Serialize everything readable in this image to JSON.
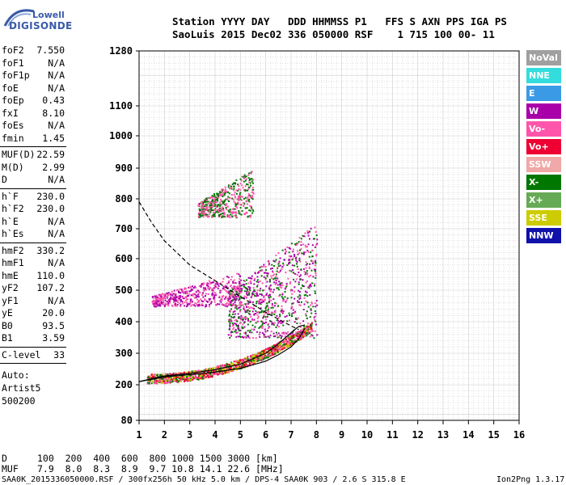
{
  "logo": {
    "line1": "Lowell",
    "line2": "DIGISONDE"
  },
  "header": {
    "row1": "Station YYYY DAY   DDD HHMMSS P1   FFS S AXN PPS IGA PS",
    "row2": "SaoLuis 2015 Dec02 336 050000 RSF    1 715 100 00- 11"
  },
  "params_groups": [
    [
      {
        "name": "foF2",
        "value": "7.550"
      },
      {
        "name": "foF1",
        "value": "N/A"
      },
      {
        "name": "foF1p",
        "value": "N/A"
      },
      {
        "name": "foE",
        "value": "N/A"
      },
      {
        "name": "foEp",
        "value": "0.43"
      },
      {
        "name": "fxI",
        "value": "8.10"
      },
      {
        "name": "foEs",
        "value": "N/A"
      },
      {
        "name": "fmin",
        "value": "1.45"
      }
    ],
    [
      {
        "name": "MUF(D)",
        "value": "22.59"
      },
      {
        "name": "M(D)",
        "value": "2.99"
      },
      {
        "name": "D",
        "value": "N/A"
      }
    ],
    [
      {
        "name": "h`F",
        "value": "230.0"
      },
      {
        "name": "h`F2",
        "value": "230.0"
      },
      {
        "name": "h`E",
        "value": "N/A"
      },
      {
        "name": "h`Es",
        "value": "N/A"
      }
    ],
    [
      {
        "name": "hmF2",
        "value": "330.2"
      },
      {
        "name": "hmF1",
        "value": "N/A"
      },
      {
        "name": "hmE",
        "value": "110.0"
      },
      {
        "name": "yF2",
        "value": "107.2"
      },
      {
        "name": "yF1",
        "value": "N/A"
      },
      {
        "name": "yE",
        "value": "20.0"
      },
      {
        "name": "B0",
        "value": "93.5"
      },
      {
        "name": "B1",
        "value": "3.59"
      }
    ],
    [
      {
        "name": "C-level",
        "value": "33"
      }
    ]
  ],
  "auto_notes": [
    "Auto:",
    "Artist5",
    "500200"
  ],
  "legend": [
    {
      "label": "NoVal",
      "color": "#a0a0a0"
    },
    {
      "label": "NNE",
      "color": "#33dddd"
    },
    {
      "label": "E",
      "color": "#3a9ae6"
    },
    {
      "label": "W",
      "color": "#aa00aa"
    },
    {
      "label": "Vo-",
      "color": "#ff55aa"
    },
    {
      "label": "Vo+",
      "color": "#ee0033"
    },
    {
      "label": "SSW",
      "color": "#f0a8a8"
    },
    {
      "label": "X-",
      "color": "#007700"
    },
    {
      "label": "X+",
      "color": "#66aa55"
    },
    {
      "label": "SSE",
      "color": "#cccc00"
    },
    {
      "label": "NNW",
      "color": "#1010aa"
    }
  ],
  "muf_table": {
    "row1_label": "D",
    "row1": "100  200  400  600  800 1000 1500 3000 [km]",
    "row2_label": "MUF",
    "row2": "7.9  8.0  8.3  8.9  9.7 10.8 14.1 22.6 [MHz]"
  },
  "footer": {
    "left": "SAA0K_2015336050000.RSF / 300fx256h 50 kHz 5.0 km / DPS-4 SAA0K 903 / 2.6 S 315.8 E",
    "right": "Ion2Png 1.3.17"
  },
  "chart_data": {
    "type": "scatter",
    "title": "",
    "xlabel": "",
    "ylabel": "",
    "xlim": [
      1,
      16
    ],
    "ylim": [
      80,
      1280
    ],
    "x_ticks": [
      1,
      2,
      3,
      4,
      5,
      6,
      7,
      8,
      9,
      10,
      11,
      12,
      13,
      14,
      15,
      16
    ],
    "y_ticks": [
      80,
      200,
      300,
      400,
      500,
      600,
      700,
      800,
      900,
      1000,
      1100,
      1280
    ],
    "grid": true,
    "trace_regions": [
      {
        "name": "o-trace F2",
        "x": [
          1.3,
          7.8
        ],
        "y": [
          215,
          380
        ],
        "colors": [
          "#ff55aa",
          "#007700",
          "#cccc00",
          "#ee0033"
        ]
      },
      {
        "name": "2nd hop",
        "x": [
          1.5,
          5.0
        ],
        "y": [
          450,
          560
        ],
        "colors": [
          "#ff55aa",
          "#aa00aa"
        ]
      },
      {
        "name": "3rd hop",
        "x": [
          3.3,
          5.5
        ],
        "y": [
          740,
          900
        ],
        "colors": [
          "#ff55aa",
          "#007700"
        ]
      },
      {
        "name": "spread F",
        "x": [
          4.5,
          8.0
        ],
        "y": [
          350,
          720
        ],
        "colors": [
          "#007700",
          "#ff55aa",
          "#aa00aa"
        ]
      }
    ],
    "profile_curve": {
      "x": [
        1.0,
        2.0,
        3.0,
        4.0,
        5.0,
        6.0,
        6.5,
        7.0,
        7.3,
        7.55
      ],
      "y": [
        210,
        225,
        232,
        240,
        252,
        275,
        295,
        320,
        345,
        380
      ]
    },
    "virtual_curve": {
      "x": [
        1.0,
        2.0,
        3.0,
        4.0,
        5.0,
        6.0,
        6.5,
        7.0,
        7.3,
        7.55
      ],
      "y": [
        210,
        228,
        236,
        248,
        265,
        300,
        330,
        365,
        385,
        390
      ]
    },
    "dashed_curve": {
      "x": [
        1.0,
        1.5,
        2.0,
        3.0,
        4.0,
        5.0,
        6.0,
        6.8,
        7.3
      ],
      "y": [
        790,
        720,
        660,
        580,
        530,
        480,
        430,
        395,
        375
      ]
    }
  }
}
